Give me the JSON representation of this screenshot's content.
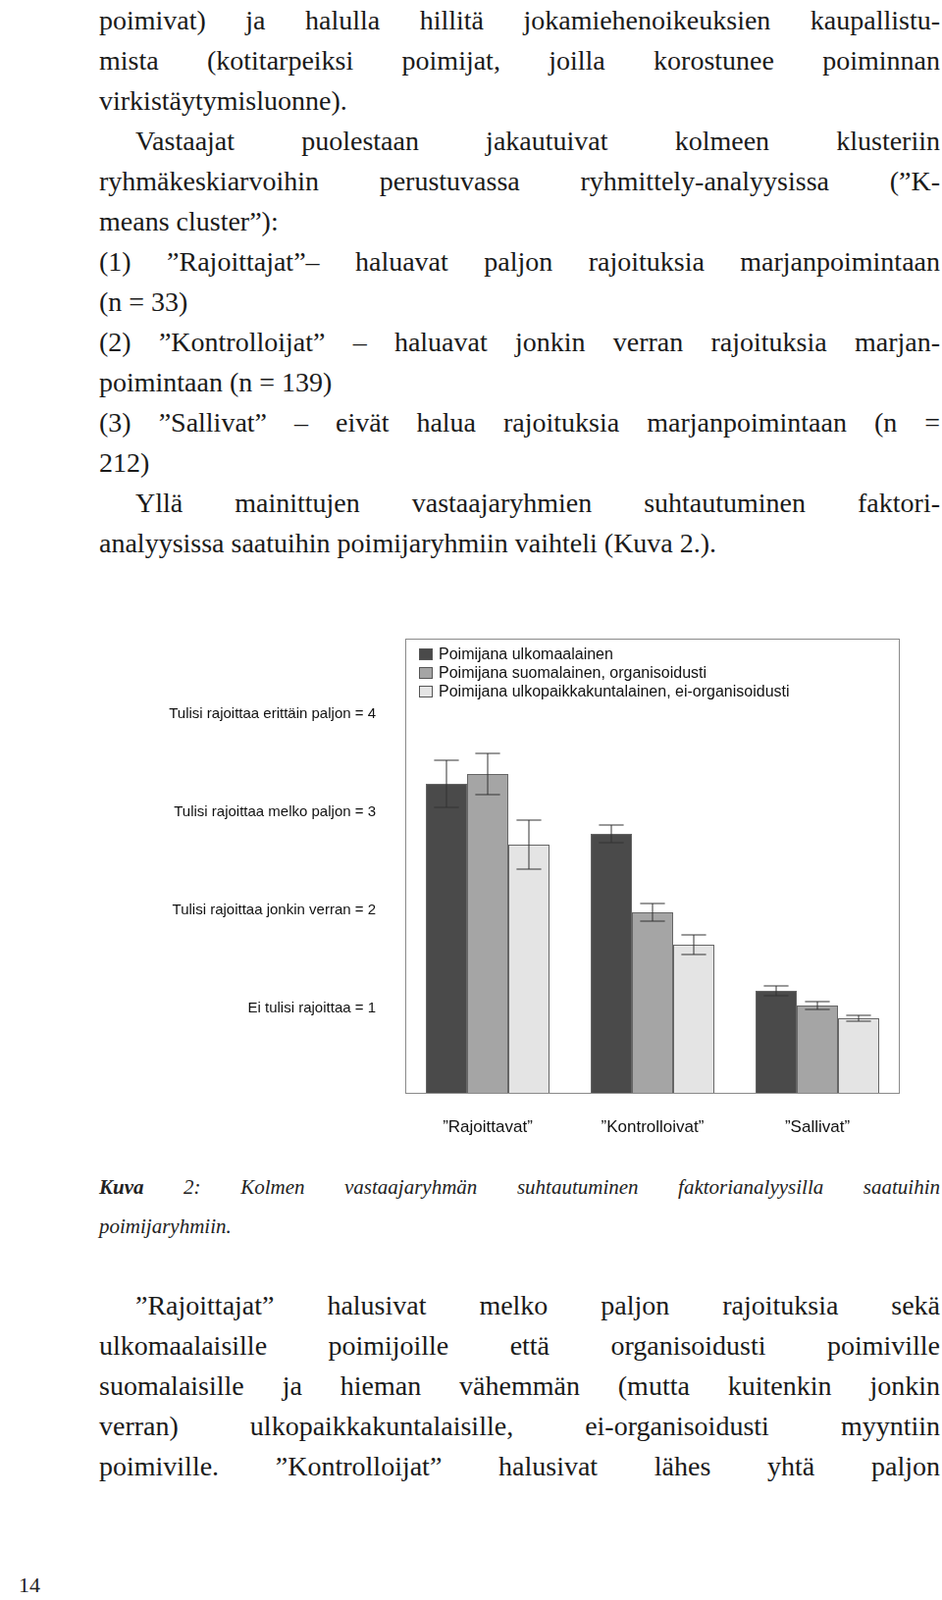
{
  "intro": {
    "lines": [
      "poimivat) ja halulla hillitä jokamiehenoikeuksien kaupallistu-",
      "mista (kotitarpeiksi poimijat, joilla korostunee poiminnan",
      "virkistäytymisluonne)."
    ]
  },
  "paragraph": {
    "lines": [
      "Vastaajat puolestaan jakautuivat kolmeen klusteriin",
      "ryhmäkeskiarvoihin perustuvassa ryhmittely-analyysissa (”K-",
      "means cluster”):"
    ]
  },
  "list": [
    {
      "lines": [
        "(1) ”Rajoittajat”– haluavat paljon rajoituksia marjanpoimintaan",
        "(n = 33)"
      ]
    },
    {
      "lines": [
        "(2) ”Kontrolloijat” – haluavat jonkin verran rajoituksia marjan-",
        "poimintaan (n = 139)"
      ]
    },
    {
      "lines": [
        "(3) ”Sallivat” – eivät halua rajoituksia marjanpoimintaan (n =",
        "212)"
      ]
    }
  ],
  "paragraph_2": {
    "lines": [
      "Yllä mainittujen vastaajaryhmien suhtautuminen faktori-",
      "analyysissa saatuihin poimijaryhmiin vaihteli (Kuva 2.)."
    ]
  },
  "chart_data": {
    "type": "bar",
    "categories": [
      "”Rajoittavat”",
      "”Kontrolloivat”",
      "”Sallivat”"
    ],
    "series": [
      {
        "name": "Poimijana ulkomaalainen",
        "color": "#4a4a4a",
        "values": [
          3.29,
          2.78,
          1.18
        ],
        "errors": [
          0.24,
          0.09,
          0.05
        ]
      },
      {
        "name": "Poimijana suomalainen, organisoidusti",
        "color": "#a5a5a5",
        "values": [
          3.39,
          1.98,
          1.03
        ],
        "errors": [
          0.21,
          0.09,
          0.04
        ]
      },
      {
        "name": "Poimijana ulkopaikkakuntalainen, ei-organisoidusti",
        "color": "#e4e4e4",
        "values": [
          2.67,
          1.65,
          0.9
        ],
        "errors": [
          0.25,
          0.1,
          0.03
        ]
      }
    ],
    "ylim": [
      0.13,
      4.77
    ],
    "yticks": [
      {
        "value": 1,
        "label": "Ei tulisi rajoittaa = 1"
      },
      {
        "value": 2,
        "label": "Tulisi rajoittaa jonkin verran = 2"
      },
      {
        "value": 3,
        "label": "Tulisi rajoittaa melko paljon = 3"
      },
      {
        "value": 4,
        "label": "Tulisi rajoittaa erittäin paljon = 4"
      }
    ],
    "grid": false,
    "legend": "upper left"
  },
  "caption": {
    "label": "Kuva",
    "number": "2:",
    "lines": [
      "Kolmen vastaajaryhmän suhtautuminen faktorianalyysilla saatuihin",
      "poimijaryhmiin."
    ]
  },
  "paragraph_3": {
    "lines": [
      "”Rajoittajat” halusivat melko paljon rajoituksia sekä",
      "ulkomaalaisille poimijoille että organisoidusti poimiville",
      "suomalaisille ja hieman vähemmän (mutta kuitenkin jonkin",
      "verran) ulkopaikkakuntalaisille, ei-organisoidusti myyntiin",
      "poimiville. ”Kontrolloijat” halusivat lähes yhtä paljon"
    ]
  },
  "page_number": "14"
}
